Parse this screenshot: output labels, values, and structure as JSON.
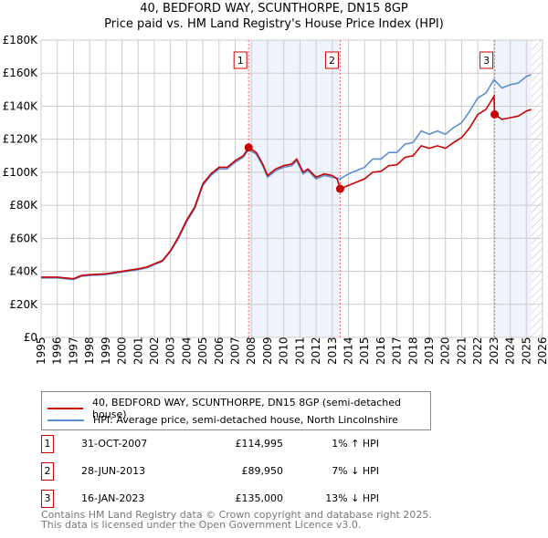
{
  "title": "40, BEDFORD WAY, SCUNTHORPE, DN15 8GP",
  "subtitle": "Price paid vs. HM Land Registry's House Price Index (HPI)",
  "chart_data": {
    "type": "line",
    "title": "40, BEDFORD WAY, SCUNTHORPE, DN15 8GP",
    "subtitle": "Price paid vs. HM Land Registry's House Price Index (HPI)",
    "xlim": [
      1995,
      2026
    ],
    "ylim": [
      0,
      180000
    ],
    "y_ticks": [
      0,
      20000,
      40000,
      60000,
      80000,
      100000,
      120000,
      140000,
      160000,
      180000
    ],
    "y_tick_labels": [
      "£0",
      "£20K",
      "£40K",
      "£60K",
      "£80K",
      "£100K",
      "£120K",
      "£140K",
      "£160K",
      "£180K"
    ],
    "x_ticks": [
      "1995",
      "1996",
      "1997",
      "1998",
      "1999",
      "2000",
      "2001",
      "2002",
      "2003",
      "2004",
      "2005",
      "2006",
      "2007",
      "2008",
      "2009",
      "2010",
      "2011",
      "2012",
      "2013",
      "2014",
      "2015",
      "2016",
      "2017",
      "2018",
      "2019",
      "2020",
      "2021",
      "2022",
      "2023",
      "2024",
      "2025",
      "2026"
    ],
    "grid": true,
    "colors": {
      "property": "#cc0000",
      "hpi": "#5b8fd4",
      "shade": "#eef3fc"
    },
    "series": [
      {
        "name": "40, BEDFORD WAY, SCUNTHORPE, DN15 8GP (semi-detached house)",
        "key": "property",
        "x": [
          1995,
          1996,
          1997,
          1997.5,
          1998,
          1999,
          2000,
          2001,
          2001.5,
          2002,
          2002.5,
          2003,
          2003.5,
          2004,
          2004.5,
          2005,
          2005.5,
          2006,
          2006.5,
          2007,
          2007.5,
          2007.83,
          2008.3,
          2008.7,
          2009,
          2009.5,
          2010,
          2010.5,
          2010.8,
          2011.2,
          2011.5,
          2012,
          2012.5,
          2013,
          2013.3,
          2013.49,
          2014,
          2014.5,
          2015,
          2015.5,
          2016,
          2016.5,
          2017,
          2017.5,
          2018,
          2018.5,
          2019,
          2019.5,
          2020,
          2020.5,
          2021,
          2021.5,
          2022,
          2022.5,
          2023.0,
          2023.04,
          2023.5,
          2024,
          2024.5,
          2025,
          2025.3
        ],
        "y": [
          36500,
          36500,
          35500,
          37500,
          38000,
          38500,
          40000,
          41500,
          42500,
          44500,
          46500,
          52500,
          61000,
          71000,
          79000,
          93000,
          99000,
          103000,
          103000,
          107000,
          110000,
          114995,
          112000,
          105000,
          98000,
          102000,
          104000,
          105000,
          108000,
          100000,
          102000,
          97000,
          99000,
          98000,
          96000,
          89950,
          92000,
          94000,
          96000,
          100000,
          100500,
          104000,
          104500,
          109000,
          110000,
          116000,
          114500,
          116000,
          114500,
          118000,
          121000,
          127000,
          135000,
          138000,
          146000,
          135000,
          132000,
          133000,
          134000,
          137000,
          138000
        ]
      },
      {
        "name": "HPI: Average price, semi-detached house, North Lincolnshire",
        "key": "hpi",
        "x": [
          1995,
          1996,
          1997,
          1997.5,
          1998,
          1999,
          2000,
          2001,
          2001.5,
          2002,
          2002.5,
          2003,
          2003.5,
          2004,
          2004.5,
          2005,
          2005.5,
          2006,
          2006.5,
          2007,
          2007.5,
          2007.83,
          2008.3,
          2008.7,
          2009,
          2009.5,
          2010,
          2010.5,
          2010.8,
          2011.2,
          2011.5,
          2012,
          2012.5,
          2013,
          2013.5,
          2014,
          2014.5,
          2015,
          2015.5,
          2016,
          2016.5,
          2017,
          2017.5,
          2018,
          2018.5,
          2019,
          2019.5,
          2020,
          2020.5,
          2021,
          2021.5,
          2022,
          2022.5,
          2023,
          2023.5,
          2024,
          2024.5,
          2025,
          2025.3
        ],
        "y": [
          36000,
          36000,
          35000,
          37000,
          37500,
          38000,
          39500,
          41000,
          42000,
          44000,
          46000,
          52000,
          60000,
          70000,
          78000,
          92000,
          98000,
          102000,
          102000,
          106000,
          109000,
          113500,
          111000,
          104000,
          97000,
          101000,
          103000,
          104000,
          107000,
          99000,
          101000,
          96000,
          98000,
          97000,
          96000,
          99000,
          101000,
          103000,
          108000,
          108000,
          112000,
          112000,
          117000,
          118000,
          125000,
          123000,
          125000,
          123000,
          127000,
          130000,
          137000,
          145000,
          148000,
          156000,
          151000,
          153000,
          154000,
          158000,
          159000
        ]
      }
    ],
    "shaded_periods": [
      [
        2007.83,
        2013.49
      ],
      [
        2023.04,
        2025.3
      ]
    ],
    "hatched_region": [
      2025.3,
      2026
    ],
    "markers": [
      {
        "label": "1",
        "x": 2007.83,
        "y": 114995
      },
      {
        "label": "2",
        "x": 2013.49,
        "y": 89950
      },
      {
        "label": "3",
        "x": 2023.04,
        "y": 135000
      }
    ],
    "legend": "below"
  },
  "transactions": [
    {
      "num": "1",
      "date": "31-OCT-2007",
      "price": "£114,995",
      "hpi": "1% ↑ HPI"
    },
    {
      "num": "2",
      "date": "28-JUN-2013",
      "price": "£89,950",
      "hpi": "7% ↓ HPI"
    },
    {
      "num": "3",
      "date": "16-JAN-2023",
      "price": "£135,000",
      "hpi": "13% ↓ HPI"
    }
  ],
  "footer": [
    "Contains HM Land Registry data © Crown copyright and database right 2025.",
    "This data is licensed under the Open Government Licence v3.0."
  ]
}
